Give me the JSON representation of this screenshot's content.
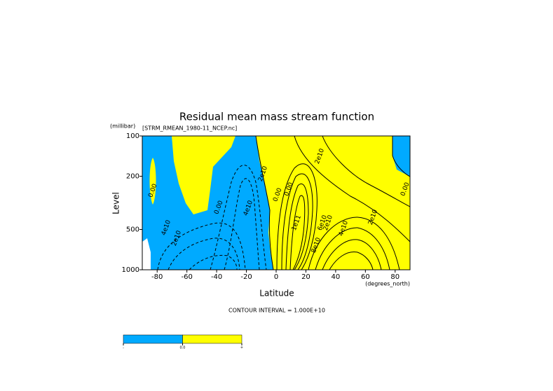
{
  "chart_data": {
    "type": "contour",
    "title": "Residual mean mass stream function",
    "subtitle": "[STRM_RMEAN_1980-11_NCEP.nc]",
    "y_unit": "(millibar)",
    "y_label": "Level",
    "x_label": "Latitude",
    "x_unit": "(degrees_north)",
    "note": "CONTOUR INTERVAL = 1.000E+10",
    "xlim": [
      -90,
      90
    ],
    "xticks": [
      -80,
      -60,
      -40,
      -20,
      0,
      20,
      40,
      60,
      80
    ],
    "ylim": [
      1000,
      100
    ],
    "yticks": [
      100,
      200,
      500,
      1000
    ],
    "ylog": true,
    "fill_colors": [
      "#00aaff",
      "#ffff00"
    ],
    "colorbar_labels": [
      "-",
      "0.0",
      "+"
    ],
    "contour_labels": [
      "0.00",
      "0.00",
      "0.00",
      "0.00",
      "2e10",
      "4e10",
      "2e10",
      "2e10",
      "2e10",
      "4e10",
      "1e11",
      "6e10",
      "8e10",
      "2e10",
      "4e10",
      "0.00"
    ]
  }
}
